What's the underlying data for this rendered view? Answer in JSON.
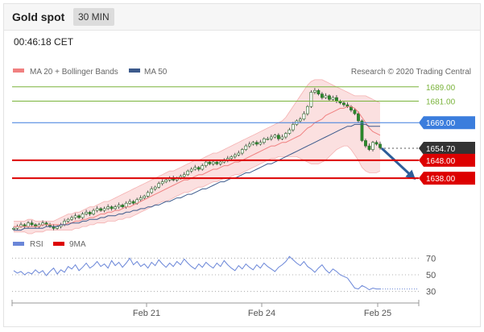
{
  "header": {
    "title": "Gold spot",
    "timeframe": "30 MIN"
  },
  "timestamp": "00:46:18 CET",
  "legend": {
    "ma20": "MA 20 + Bollinger Bands",
    "ma50": "MA 50",
    "rsi": "RSI",
    "ma9": "9MA"
  },
  "credit": "Research © 2020 Trading Central",
  "colors": {
    "resistance": "#7ab33b",
    "pivot": "#3b7ddd",
    "support": "#dd0000",
    "last": "#333333",
    "ma20": "#f08080",
    "ma50": "#3c5a8c",
    "band": "#f9d5d5",
    "arrow": "#2d5e9a",
    "rsi": "#6a86d8"
  },
  "chart_data": [
    {
      "type": "line",
      "title": "Gold spot",
      "x_ticks": [
        "Feb 21",
        "Feb 24",
        "Feb 25"
      ],
      "levels": [
        {
          "label": "1689.00",
          "value": 1689.0,
          "kind": "resistance"
        },
        {
          "label": "1681.00",
          "value": 1681.0,
          "kind": "resistance"
        },
        {
          "label": "1669.00",
          "value": 1669.0,
          "kind": "pivot"
        },
        {
          "label": "1654.70",
          "value": 1654.7,
          "kind": "last"
        },
        {
          "label": "1648.00",
          "value": 1648.0,
          "kind": "support"
        },
        {
          "label": "1638.00",
          "value": 1638.0,
          "kind": "support"
        }
      ],
      "ylim": [
        1607,
        1697
      ],
      "series": [
        {
          "name": "MA 20 + Bollinger Bands"
        },
        {
          "name": "MA 50"
        }
      ],
      "price_close": [
        1610,
        1611,
        1612,
        1611,
        1613,
        1612,
        1611,
        1612,
        1613,
        1612,
        1611,
        1610,
        1611,
        1612,
        1614,
        1615,
        1616,
        1617,
        1616,
        1618,
        1619,
        1618,
        1620,
        1621,
        1620,
        1621,
        1622,
        1621,
        1622,
        1623,
        1622,
        1624,
        1625,
        1624,
        1626,
        1627,
        1628,
        1630,
        1632,
        1633,
        1635,
        1636,
        1637,
        1638,
        1637,
        1638,
        1639,
        1640,
        1642,
        1643,
        1644,
        1643,
        1645,
        1647,
        1646,
        1647,
        1646,
        1647,
        1648,
        1649,
        1650,
        1651,
        1652,
        1654,
        1656,
        1657,
        1658,
        1657,
        1658,
        1660,
        1660,
        1661,
        1662,
        1660,
        1661,
        1663,
        1665,
        1668,
        1670,
        1671,
        1674,
        1678,
        1686,
        1687,
        1685,
        1683,
        1684,
        1682,
        1683,
        1681,
        1680,
        1679,
        1678,
        1676,
        1674,
        1670,
        1659,
        1656,
        1654,
        1658,
        1657,
        1655
      ],
      "ma20": [
        1611,
        1611,
        1611,
        1611,
        1611,
        1611,
        1611,
        1611,
        1612,
        1612,
        1612,
        1612,
        1612,
        1612,
        1612,
        1613,
        1613,
        1614,
        1614,
        1615,
        1615,
        1616,
        1616,
        1617,
        1618,
        1618,
        1619,
        1619,
        1620,
        1620,
        1621,
        1622,
        1622,
        1623,
        1624,
        1625,
        1626,
        1627,
        1628,
        1629,
        1630,
        1631,
        1632,
        1633,
        1634,
        1635,
        1636,
        1637,
        1637,
        1638,
        1639,
        1640,
        1640,
        1641,
        1642,
        1643,
        1643,
        1644,
        1645,
        1645,
        1646,
        1647,
        1647,
        1648,
        1649,
        1650,
        1651,
        1652,
        1653,
        1654,
        1655,
        1656,
        1656,
        1657,
        1658,
        1658,
        1659,
        1660,
        1661,
        1662,
        1664,
        1666,
        1667,
        1669,
        1670,
        1671,
        1673,
        1674,
        1675,
        1676,
        1677,
        1677,
        1678,
        1678,
        1677,
        1675,
        1672,
        1669,
        1666,
        1664,
        1663,
        1662
      ],
      "bb_upper": [
        1614,
        1614,
        1614,
        1614,
        1615,
        1615,
        1614,
        1614,
        1614,
        1614,
        1614,
        1614,
        1615,
        1616,
        1617,
        1618,
        1618,
        1619,
        1619,
        1620,
        1621,
        1622,
        1622,
        1623,
        1624,
        1625,
        1625,
        1626,
        1627,
        1628,
        1629,
        1630,
        1631,
        1632,
        1633,
        1634,
        1635,
        1636,
        1637,
        1638,
        1639,
        1640,
        1641,
        1642,
        1642,
        1643,
        1644,
        1645,
        1646,
        1647,
        1648,
        1648,
        1649,
        1650,
        1651,
        1652,
        1652,
        1653,
        1654,
        1655,
        1656,
        1657,
        1658,
        1659,
        1660,
        1661,
        1662,
        1663,
        1664,
        1665,
        1666,
        1667,
        1668,
        1669,
        1670,
        1672,
        1675,
        1678,
        1681,
        1684,
        1687,
        1690,
        1692,
        1693,
        1693,
        1693,
        1692,
        1691,
        1690,
        1689,
        1688,
        1687,
        1686,
        1685,
        1684,
        1684,
        1684,
        1684,
        1683,
        1682,
        1681,
        1680
      ],
      "bb_lower": [
        1608,
        1608,
        1608,
        1608,
        1607,
        1607,
        1608,
        1608,
        1608,
        1609,
        1609,
        1609,
        1609,
        1609,
        1609,
        1609,
        1609,
        1610,
        1610,
        1611,
        1611,
        1612,
        1612,
        1613,
        1613,
        1613,
        1614,
        1614,
        1614,
        1615,
        1615,
        1616,
        1616,
        1617,
        1618,
        1619,
        1620,
        1621,
        1622,
        1623,
        1624,
        1625,
        1625,
        1626,
        1627,
        1628,
        1629,
        1630,
        1630,
        1631,
        1632,
        1633,
        1633,
        1634,
        1635,
        1636,
        1636,
        1637,
        1638,
        1638,
        1639,
        1640,
        1640,
        1641,
        1642,
        1643,
        1644,
        1645,
        1646,
        1647,
        1648,
        1649,
        1649,
        1650,
        1650,
        1650,
        1650,
        1650,
        1650,
        1649,
        1648,
        1647,
        1646,
        1646,
        1646,
        1647,
        1648,
        1650,
        1652,
        1654,
        1655,
        1656,
        1656,
        1654,
        1651,
        1648,
        1644,
        1642,
        1641,
        1641,
        1641,
        1642
      ],
      "ma50": [
        1609,
        1609,
        1609,
        1610,
        1610,
        1610,
        1610,
        1610,
        1610,
        1611,
        1611,
        1611,
        1611,
        1612,
        1612,
        1612,
        1613,
        1613,
        1613,
        1614,
        1614,
        1615,
        1615,
        1615,
        1616,
        1616,
        1617,
        1617,
        1617,
        1618,
        1618,
        1619,
        1619,
        1620,
        1620,
        1621,
        1621,
        1622,
        1622,
        1623,
        1623,
        1624,
        1625,
        1625,
        1626,
        1627,
        1627,
        1628,
        1629,
        1629,
        1630,
        1631,
        1632,
        1632,
        1633,
        1634,
        1635,
        1636,
        1636,
        1637,
        1638,
        1638,
        1639,
        1640,
        1641,
        1641,
        1642,
        1643,
        1644,
        1645,
        1646,
        1646,
        1647,
        1648,
        1649,
        1650,
        1651,
        1652,
        1653,
        1654,
        1655,
        1656,
        1657,
        1658,
        1659,
        1660,
        1661,
        1662,
        1663,
        1664,
        1665,
        1666,
        1667,
        1667,
        1668,
        1668,
        1668,
        1668,
        1667,
        1667,
        1667,
        1667
      ],
      "forecast_arrow": {
        "from": 1654.7,
        "to": 1638.0
      }
    },
    {
      "type": "line",
      "title": "RSI",
      "yticks": [
        30,
        50,
        70
      ],
      "ylim": [
        20,
        80
      ],
      "series": [
        {
          "name": "RSI",
          "values": [
            55,
            52,
            54,
            50,
            53,
            51,
            56,
            52,
            55,
            49,
            54,
            58,
            51,
            56,
            53,
            60,
            57,
            62,
            55,
            59,
            64,
            58,
            61,
            66,
            60,
            63,
            58,
            67,
            61,
            65,
            59,
            64,
            70,
            62,
            66,
            60,
            63,
            58,
            65,
            61,
            68,
            63,
            59,
            64,
            60,
            66,
            62,
            69,
            64,
            60,
            57,
            63,
            59,
            65,
            61,
            58,
            64,
            60,
            67,
            62,
            58,
            55,
            61,
            57,
            63,
            59,
            56,
            62,
            58,
            64,
            60,
            57,
            54,
            59,
            62,
            66,
            72,
            68,
            64,
            61,
            66,
            60,
            57,
            53,
            58,
            62,
            56,
            52,
            57,
            54,
            50,
            48,
            46,
            40,
            34,
            33,
            37,
            35,
            32,
            34,
            33,
            33
          ]
        },
        {
          "name": "9MA"
        }
      ]
    }
  ]
}
